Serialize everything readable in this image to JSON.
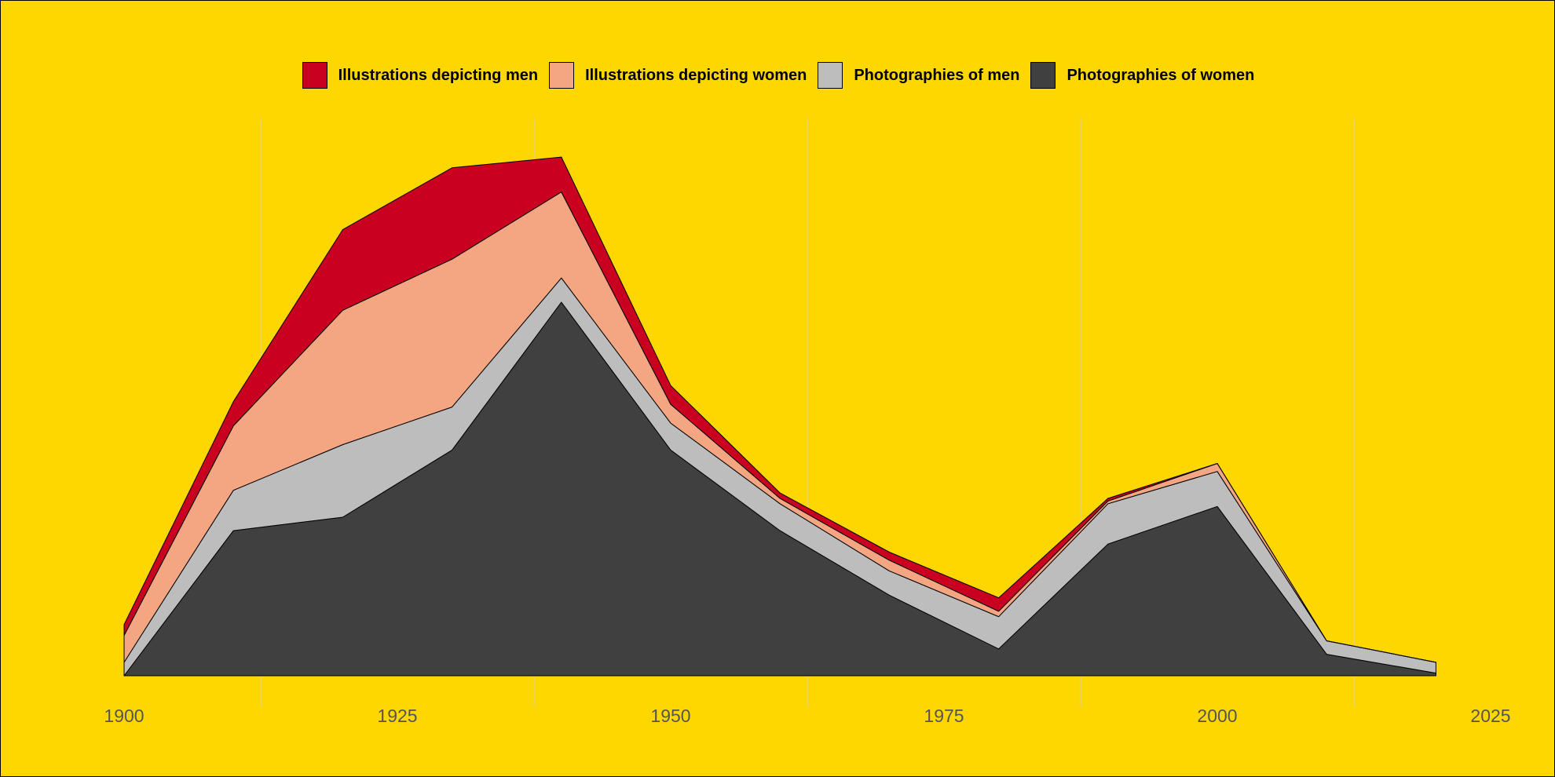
{
  "chart_data": {
    "type": "area",
    "stacked": true,
    "x": [
      1900,
      1910,
      1920,
      1930,
      1940,
      1950,
      1960,
      1970,
      1980,
      1990,
      2000,
      2010,
      2020
    ],
    "series": [
      {
        "name": "Photographies of women",
        "color": "#404040",
        "values": [
          0,
          54,
          59,
          84,
          139,
          84,
          54,
          30,
          10,
          49,
          63,
          8,
          1
        ]
      },
      {
        "name": "Photographies of men",
        "color": "#BDBDBD",
        "values": [
          5,
          15,
          27,
          16,
          9,
          10,
          10,
          9,
          12,
          15,
          13,
          5,
          4
        ]
      },
      {
        "name": "Illustrations depicting women",
        "color": "#F4A582",
        "values": [
          10,
          24,
          50,
          55,
          32,
          7,
          2,
          4,
          2,
          1,
          3,
          0,
          0
        ]
      },
      {
        "name": "Illustrations depicting men",
        "color": "#CA0020",
        "values": [
          4,
          9,
          30,
          34,
          13,
          7,
          2,
          3,
          5,
          1,
          0,
          0,
          0
        ]
      }
    ],
    "x_ticks": [
      "1900",
      "1925",
      "1950",
      "1975",
      "2000",
      "2025"
    ],
    "xlim": [
      1900,
      2025
    ],
    "ylim": [
      0,
      205
    ],
    "xlabel": "",
    "ylabel": "",
    "grid": "vertical",
    "legend": "top",
    "background": "#FFD700"
  }
}
